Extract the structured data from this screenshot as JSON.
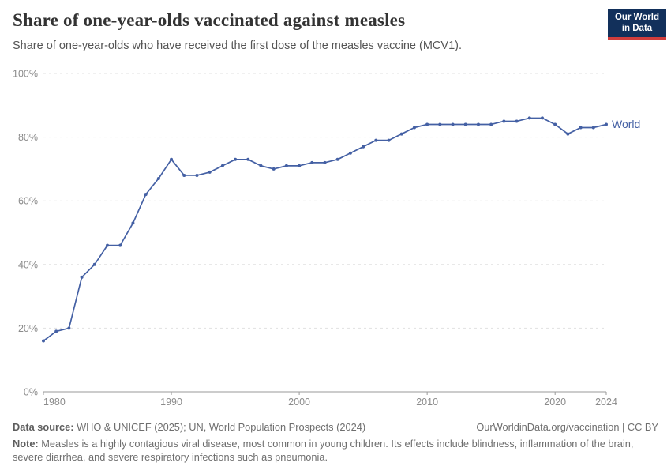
{
  "header": {
    "title": "Share of one-year-olds vaccinated against measles",
    "subtitle": "Share of one-year-olds who have received the first dose of the measles vaccine (MCV1).",
    "logo": {
      "line1": "Our World",
      "line2": "in Data"
    }
  },
  "chart_data": {
    "type": "line",
    "title": "Share of one-year-olds vaccinated against measles",
    "x": [
      1980,
      1981,
      1982,
      1983,
      1984,
      1985,
      1986,
      1987,
      1988,
      1989,
      1990,
      1991,
      1992,
      1993,
      1994,
      1995,
      1996,
      1997,
      1998,
      1999,
      2000,
      2001,
      2002,
      2003,
      2004,
      2005,
      2006,
      2007,
      2008,
      2009,
      2010,
      2011,
      2012,
      2013,
      2014,
      2015,
      2016,
      2017,
      2018,
      2019,
      2020,
      2021,
      2022,
      2023,
      2024
    ],
    "series": [
      {
        "name": "World",
        "values": [
          16,
          19,
          20,
          36,
          40,
          46,
          46,
          53,
          62,
          67,
          73,
          68,
          68,
          69,
          71,
          73,
          73,
          71,
          70,
          71,
          71,
          72,
          72,
          73,
          75,
          77,
          79,
          79,
          81,
          83,
          84,
          84,
          84,
          84,
          84,
          84,
          85,
          85,
          86,
          86,
          84,
          81,
          83,
          83,
          84
        ]
      }
    ],
    "xlim": [
      1980,
      2024
    ],
    "ylim": [
      0,
      100
    ],
    "x_ticks": [
      1980,
      1990,
      2000,
      2010,
      2020,
      2024
    ],
    "x_tick_labels": [
      "1980",
      "1990",
      "2000",
      "2010",
      "2020",
      "2024"
    ],
    "y_ticks": [
      0,
      20,
      40,
      60,
      80,
      100
    ],
    "y_tick_labels": [
      "0%",
      "20%",
      "40%",
      "60%",
      "80%",
      "100%"
    ],
    "grid": "horizontal-dashed",
    "legend": "end-of-line-label",
    "series_end_label": "World"
  },
  "footer": {
    "datasource_label": "Data source:",
    "datasource_text": " WHO & UNICEF (2025); UN, World Population Prospects (2024)",
    "attribution": "OurWorldinData.org/vaccination | CC BY",
    "note_label": "Note:",
    "note_text": " Measles is a highly contagious viral disease, most common in young children. Its effects include blindness, inflammation of the brain, severe diarrhea, and severe respiratory infections such as pneumonia."
  },
  "colors": {
    "line": "#4460a4",
    "grid": "#e1e1e1",
    "axis": "#9a9a9a",
    "tick_label": "#8b8b8b",
    "logo_bg": "#12305b",
    "logo_accent": "#d13d3c"
  }
}
